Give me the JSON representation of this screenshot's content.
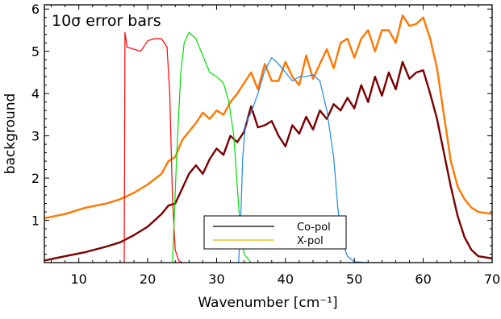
{
  "chart_data": {
    "type": "line",
    "annotation": "10σ error bars",
    "xlabel": "Wavenumber [cm⁻¹]",
    "ylabel": "background",
    "xlim": [
      5,
      70
    ],
    "ylim": [
      0,
      6.1
    ],
    "xticks": [
      10,
      20,
      30,
      40,
      50,
      60,
      70
    ],
    "yticks": [
      1,
      2,
      3,
      4,
      5,
      6
    ],
    "grid": false,
    "legend_position": "bottom-center",
    "legend": [
      {
        "label": "Co-pol",
        "color": "#000000"
      },
      {
        "label": "X-pol",
        "color": "#f0b400"
      }
    ],
    "series": [
      {
        "color": "#ff7700",
        "points": [
          [
            5,
            1.05
          ],
          [
            8,
            1.15
          ],
          [
            11,
            1.3
          ],
          [
            14,
            1.4
          ],
          [
            16,
            1.5
          ],
          [
            18,
            1.65
          ],
          [
            20,
            1.85
          ],
          [
            22,
            2.1
          ],
          [
            23,
            2.4
          ],
          [
            24,
            2.5
          ],
          [
            25,
            2.9
          ],
          [
            26,
            3.1
          ],
          [
            27,
            3.3
          ],
          [
            28,
            3.55
          ],
          [
            29,
            3.4
          ],
          [
            30,
            3.6
          ],
          [
            31,
            3.5
          ],
          [
            32,
            3.8
          ],
          [
            33,
            4.0
          ],
          [
            34,
            4.25
          ],
          [
            35,
            4.5
          ],
          [
            36,
            4.1
          ],
          [
            37,
            4.7
          ],
          [
            38,
            4.3
          ],
          [
            39,
            4.3
          ],
          [
            40,
            4.75
          ],
          [
            41,
            4.4
          ],
          [
            42,
            4.2
          ],
          [
            43,
            4.9
          ],
          [
            44,
            4.35
          ],
          [
            45,
            4.7
          ],
          [
            46,
            5.05
          ],
          [
            47,
            4.6
          ],
          [
            48,
            5.2
          ],
          [
            49,
            5.3
          ],
          [
            50,
            4.85
          ],
          [
            51,
            5.3
          ],
          [
            52,
            5.5
          ],
          [
            53,
            5.0
          ],
          [
            54,
            5.5
          ],
          [
            55,
            5.5
          ],
          [
            56,
            5.2
          ],
          [
            57,
            5.85
          ],
          [
            58,
            5.6
          ],
          [
            59,
            5.65
          ],
          [
            60,
            5.8
          ],
          [
            61,
            5.3
          ],
          [
            62,
            4.6
          ],
          [
            63,
            3.5
          ],
          [
            64,
            2.4
          ],
          [
            65,
            1.8
          ],
          [
            66,
            1.5
          ],
          [
            67,
            1.3
          ],
          [
            68,
            1.2
          ],
          [
            70,
            1.15
          ]
        ]
      },
      {
        "color": "#7a0000",
        "points": [
          [
            5,
            0.05
          ],
          [
            8,
            0.15
          ],
          [
            11,
            0.25
          ],
          [
            14,
            0.38
          ],
          [
            16,
            0.48
          ],
          [
            18,
            0.65
          ],
          [
            20,
            0.85
          ],
          [
            22,
            1.15
          ],
          [
            23,
            1.35
          ],
          [
            24,
            1.4
          ],
          [
            25,
            1.75
          ],
          [
            26,
            2.1
          ],
          [
            27,
            2.3
          ],
          [
            28,
            2.1
          ],
          [
            29,
            2.45
          ],
          [
            30,
            2.7
          ],
          [
            31,
            2.55
          ],
          [
            32,
            3.0
          ],
          [
            33,
            2.85
          ],
          [
            34,
            3.1
          ],
          [
            35,
            3.7
          ],
          [
            36,
            3.2
          ],
          [
            37,
            3.25
          ],
          [
            38,
            3.35
          ],
          [
            39,
            3.0
          ],
          [
            40,
            2.75
          ],
          [
            41,
            3.25
          ],
          [
            42,
            3.05
          ],
          [
            43,
            3.45
          ],
          [
            44,
            3.15
          ],
          [
            45,
            3.6
          ],
          [
            46,
            3.4
          ],
          [
            47,
            3.75
          ],
          [
            48,
            3.6
          ],
          [
            49,
            3.9
          ],
          [
            50,
            3.65
          ],
          [
            51,
            4.2
          ],
          [
            52,
            3.8
          ],
          [
            53,
            4.4
          ],
          [
            54,
            3.95
          ],
          [
            55,
            4.5
          ],
          [
            56,
            4.1
          ],
          [
            57,
            4.75
          ],
          [
            58,
            4.35
          ],
          [
            59,
            4.5
          ],
          [
            60,
            4.55
          ],
          [
            61,
            4.0
          ],
          [
            62,
            3.4
          ],
          [
            63,
            2.6
          ],
          [
            64,
            1.8
          ],
          [
            65,
            1.1
          ],
          [
            66,
            0.6
          ],
          [
            67,
            0.3
          ],
          [
            68,
            0.15
          ],
          [
            70,
            0.1
          ]
        ]
      },
      {
        "color": "#ff0000",
        "points": [
          [
            16.6,
            0
          ],
          [
            16.7,
            5.45
          ],
          [
            17,
            5.1
          ],
          [
            18,
            5.05
          ],
          [
            19,
            5.0
          ],
          [
            20,
            5.25
          ],
          [
            21,
            5.3
          ],
          [
            22,
            5.3
          ],
          [
            22.8,
            5.1
          ],
          [
            23.2,
            4.0
          ],
          [
            23.6,
            1.5
          ],
          [
            24,
            0.3
          ],
          [
            24.5,
            0.05
          ],
          [
            25,
            0
          ]
        ]
      },
      {
        "color": "#00dd00",
        "points": [
          [
            23.6,
            0
          ],
          [
            24.2,
            2.5
          ],
          [
            24.8,
            4.5
          ],
          [
            25.3,
            5.2
          ],
          [
            26,
            5.45
          ],
          [
            27,
            5.3
          ],
          [
            28,
            4.9
          ],
          [
            29,
            4.5
          ],
          [
            30,
            4.4
          ],
          [
            31,
            4.25
          ],
          [
            31.8,
            3.8
          ],
          [
            32.5,
            3.0
          ],
          [
            33,
            1.8
          ],
          [
            33.5,
            0.7
          ],
          [
            34,
            0.2
          ],
          [
            35,
            0
          ]
        ]
      },
      {
        "color": "#1e88e5",
        "points": [
          [
            33.2,
            0
          ],
          [
            33.5,
            1.0
          ],
          [
            33.8,
            2.5
          ],
          [
            34.2,
            3.3
          ],
          [
            35,
            3.55
          ],
          [
            36,
            4.0
          ],
          [
            37,
            4.55
          ],
          [
            38,
            4.85
          ],
          [
            39,
            4.7
          ],
          [
            40,
            4.5
          ],
          [
            41,
            4.3
          ],
          [
            42,
            4.4
          ],
          [
            43,
            4.4
          ],
          [
            44,
            4.45
          ],
          [
            45,
            4.3
          ],
          [
            46,
            3.6
          ],
          [
            47,
            2.5
          ],
          [
            47.6,
            1.3
          ],
          [
            48.2,
            0.5
          ],
          [
            49,
            0.15
          ],
          [
            50,
            0.02
          ],
          [
            52,
            0
          ]
        ]
      }
    ]
  },
  "legend_title_underline": ""
}
